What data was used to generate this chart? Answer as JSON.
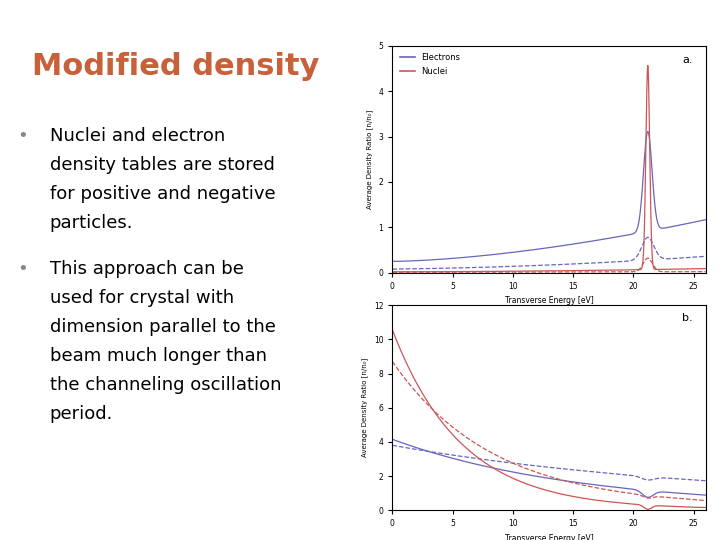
{
  "title": "Modified density",
  "title_color": "#C8603A",
  "title_fontsize": 22,
  "bullet1_line1": "Nuclei and electron",
  "bullet1_line2": "density tables are stored",
  "bullet1_line3": "for positive and negative",
  "bullet1_line4": "particles.",
  "bullet2_line1": "This approach can be",
  "bullet2_line2": "used for crystal with",
  "bullet2_line3": "dimension parallel to the",
  "bullet2_line4": "beam much longer than",
  "bullet2_line5": "the channeling oscillation",
  "bullet2_line6": "period.",
  "text_fontsize": 13,
  "header_color": "#8A9E99",
  "bg_color": "#FFFFFF",
  "plot_a_label": "a.",
  "plot_b_label": "b.",
  "xlabel": "Transverse Energy [eV]",
  "ylabel": "Average Density Ratio [n/n",
  "ylabel_sub": "0",
  "legend_electrons": "Electrons",
  "legend_nuclei": "Nuclei",
  "color_electrons": "#6666BB",
  "color_nuclei": "#CC5555",
  "plot_a_ylim": [
    0,
    5
  ],
  "plot_a_xlim": [
    0,
    26
  ],
  "plot_b_ylim": [
    0,
    12
  ],
  "plot_b_xlim": [
    0,
    26
  ]
}
